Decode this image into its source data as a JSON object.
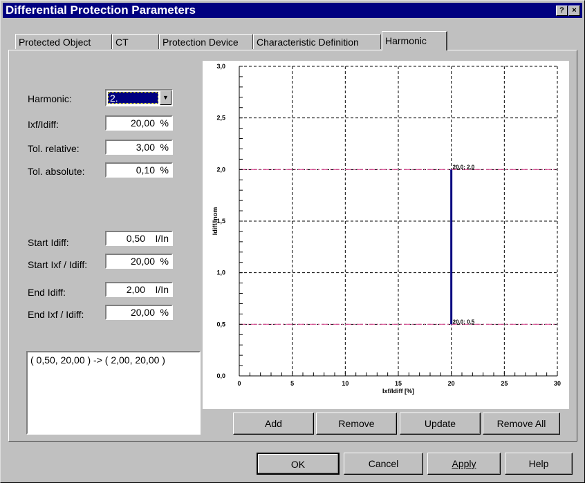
{
  "window": {
    "title": "Differential Protection Parameters",
    "help_glyph": "?",
    "close_glyph": "×"
  },
  "tabs": [
    {
      "label": "Protected Object"
    },
    {
      "label": "CT"
    },
    {
      "label": "Protection Device"
    },
    {
      "label": "Characteristic Definition"
    },
    {
      "label": "Harmonic",
      "active": true
    }
  ],
  "form": {
    "harmonic_label": "Harmonic:",
    "harmonic_value": "2.",
    "ixf_label": "Ixf/Idiff:",
    "ixf_value": "20,00",
    "ixf_unit": "%",
    "tol_rel_label": "Tol. relative:",
    "tol_rel_value": "3,00",
    "tol_rel_unit": "%",
    "tol_abs_label": "Tol. absolute:",
    "tol_abs_value": "0,10",
    "tol_abs_unit": "%",
    "start_idiff_label": "Start Idiff:",
    "start_idiff_value": "0,50",
    "start_idiff_unit": "I/In",
    "start_ixf_label": "Start Ixf / Idiff:",
    "start_ixf_value": "20,00",
    "start_ixf_unit": "%",
    "end_idiff_label": "End Idiff:",
    "end_idiff_value": "2,00",
    "end_idiff_unit": "I/In",
    "end_ixf_label": "End Ixf / Idiff:",
    "end_ixf_value": "20,00",
    "end_ixf_unit": "%"
  },
  "list": {
    "items": [
      "( 0,50, 20,00 )  ->  ( 2,00, 20,00 )"
    ]
  },
  "chart_data": {
    "type": "line",
    "xlabel": "Ixf/Idiff [%]",
    "ylabel": "Idiff/Inom",
    "xlim": [
      0,
      30
    ],
    "ylim": [
      0,
      3
    ],
    "x_ticks": [
      "0",
      "5",
      "10",
      "15",
      "20",
      "25",
      "30"
    ],
    "y_ticks": [
      "0,0",
      "0,5",
      "1,0",
      "1,5",
      "2,0",
      "2,5",
      "3,0"
    ],
    "grid": true,
    "tolerance_lines": [
      0.5,
      2.0
    ],
    "series": [
      {
        "x": [
          20,
          20
        ],
        "y": [
          0.5,
          2.0
        ]
      }
    ],
    "point_labels": [
      {
        "x": 20,
        "y": 2.0,
        "text": "20,0; 2,0"
      },
      {
        "x": 20,
        "y": 0.5,
        "text": "20,0; 0,5"
      }
    ],
    "colors": {
      "series": "#000080",
      "tolerance": "#e0559a",
      "grid": "#000000"
    }
  },
  "chart_buttons": {
    "add": "Add",
    "remove": "Remove",
    "update": "Update",
    "remove_all": "Remove All"
  },
  "dialog_buttons": {
    "ok": "OK",
    "cancel": "Cancel",
    "apply": "Apply",
    "help": "Help"
  }
}
